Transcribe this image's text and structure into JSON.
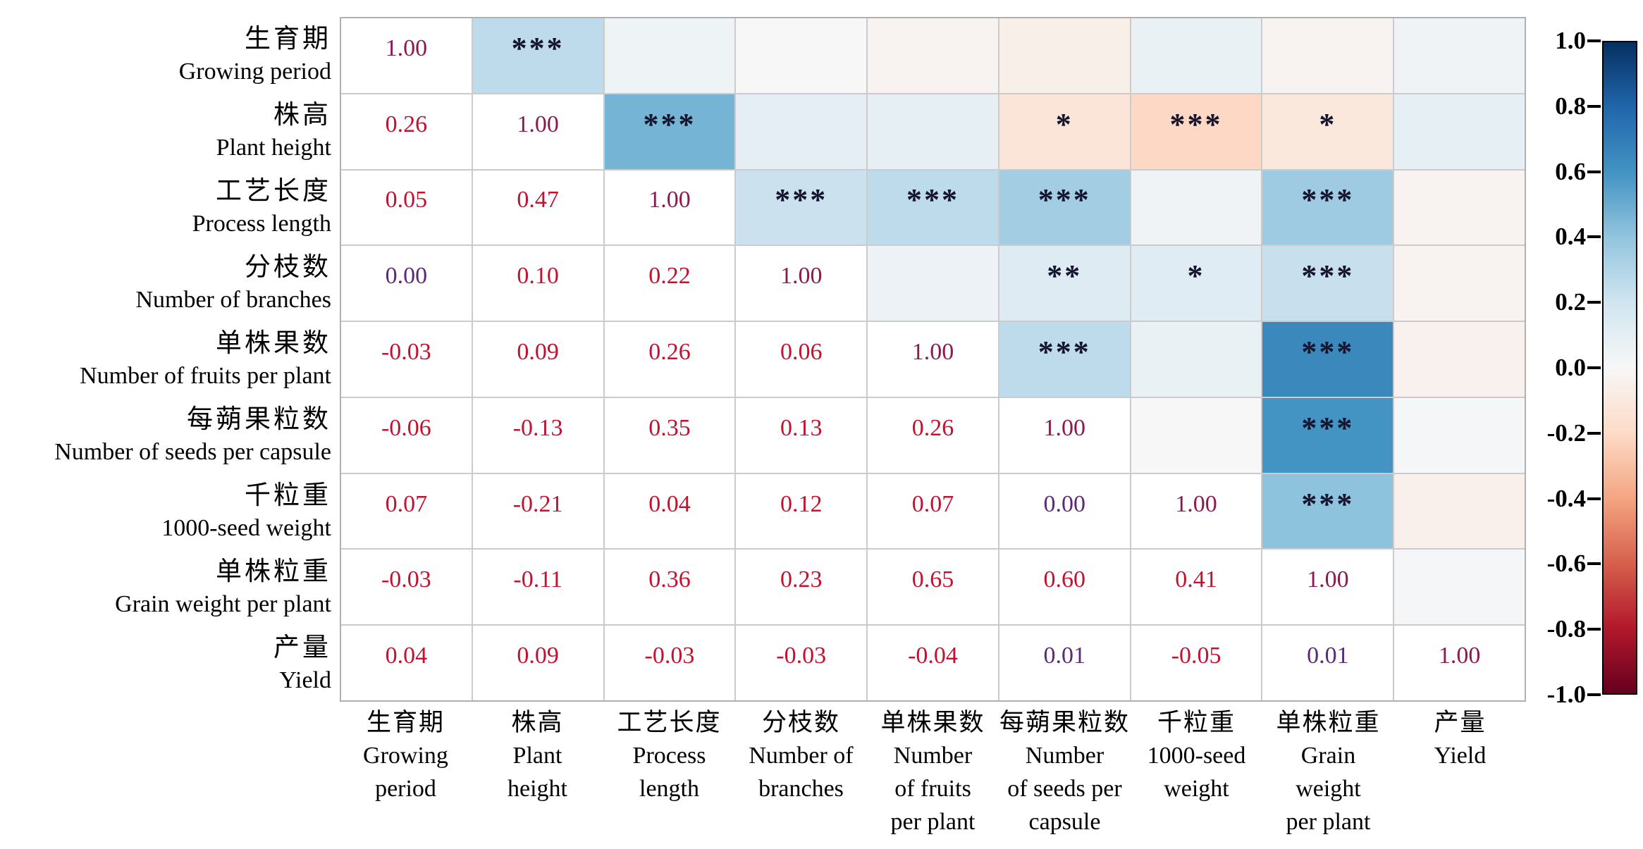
{
  "chart_data": {
    "type": "heatmap",
    "subtype": "correlation-matrix",
    "title": "",
    "variables": [
      {
        "zh": "生育期",
        "en": "Growing period",
        "col_lines": [
          "生育期",
          "Growing",
          "period"
        ]
      },
      {
        "zh": "株高",
        "en": "Plant height",
        "col_lines": [
          "株高",
          "Plant",
          "height"
        ]
      },
      {
        "zh": "工艺长度",
        "en": "Process length",
        "col_lines": [
          "工艺长度",
          "Process",
          "length"
        ]
      },
      {
        "zh": "分枝数",
        "en": "Number of branches",
        "col_lines": [
          "分枝数",
          "Number of",
          "branches"
        ]
      },
      {
        "zh": "单株果数",
        "en": "Number of fruits per plant",
        "col_lines": [
          "单株果数",
          "Number",
          "of fruits",
          "per plant"
        ]
      },
      {
        "zh": "每蒴果粒数",
        "en": "Number of seeds per capsule",
        "col_lines": [
          "每蒴果粒数",
          "Number",
          "of seeds per",
          "capsule"
        ]
      },
      {
        "zh": "千粒重",
        "en": "1000-seed weight",
        "col_lines": [
          "千粒重",
          "1000-seed",
          "weight"
        ]
      },
      {
        "zh": "单株粒重",
        "en": "Grain weight per plant",
        "col_lines": [
          "单株粒重",
          "Grain",
          "weight",
          "per plant"
        ]
      },
      {
        "zh": "产量",
        "en": "Yield",
        "col_lines": [
          "产量",
          "Yield"
        ]
      }
    ],
    "matrix_lower": [
      [
        1.0
      ],
      [
        0.26,
        1.0
      ],
      [
        0.05,
        0.47,
        1.0
      ],
      [
        0.0,
        0.1,
        0.22,
        1.0
      ],
      [
        -0.03,
        0.09,
        0.26,
        0.06,
        1.0
      ],
      [
        -0.06,
        -0.13,
        0.35,
        0.13,
        0.26,
        1.0
      ],
      [
        0.07,
        -0.21,
        0.04,
        0.12,
        0.07,
        0.0,
        1.0
      ],
      [
        -0.03,
        -0.11,
        0.36,
        0.23,
        0.65,
        0.6,
        0.41,
        1.0
      ],
      [
        0.04,
        0.09,
        -0.03,
        -0.03,
        -0.04,
        0.01,
        -0.05,
        0.01,
        1.0
      ]
    ],
    "significance": {
      "0-1": "***",
      "1-2": "***",
      "1-5": "*",
      "1-6": "***",
      "1-7": "*",
      "2-3": "***",
      "2-4": "***",
      "2-5": "***",
      "2-7": "***",
      "3-5": "**",
      "3-6": "*",
      "3-7": "***",
      "4-5": "***",
      "4-7": "***",
      "5-7": "***",
      "6-7": "***"
    },
    "colorbar": {
      "min": -1,
      "max": 1,
      "ticks": [
        "1.0",
        "0.8",
        "0.6",
        "0.4",
        "0.2",
        "0.0",
        "-0.2",
        "-0.4",
        "-0.6",
        "-0.8",
        "-1.0"
      ]
    },
    "colors": {
      "value_text": "#c2122f",
      "value_text_diagonal": "#8b1a4e",
      "value_text_nearzero": "#5a2a74",
      "star_text": "#14142e",
      "gridline": "#cbcbcb",
      "outer_border": "#b0b0b0",
      "cell_white": "#ffffff"
    },
    "rdbu_stops": [
      "#67001f",
      "#b2182b",
      "#d6604d",
      "#f4a582",
      "#fddbc7",
      "#f7f7f7",
      "#d1e5f0",
      "#92c5de",
      "#4393c3",
      "#2166ac",
      "#053061"
    ]
  }
}
